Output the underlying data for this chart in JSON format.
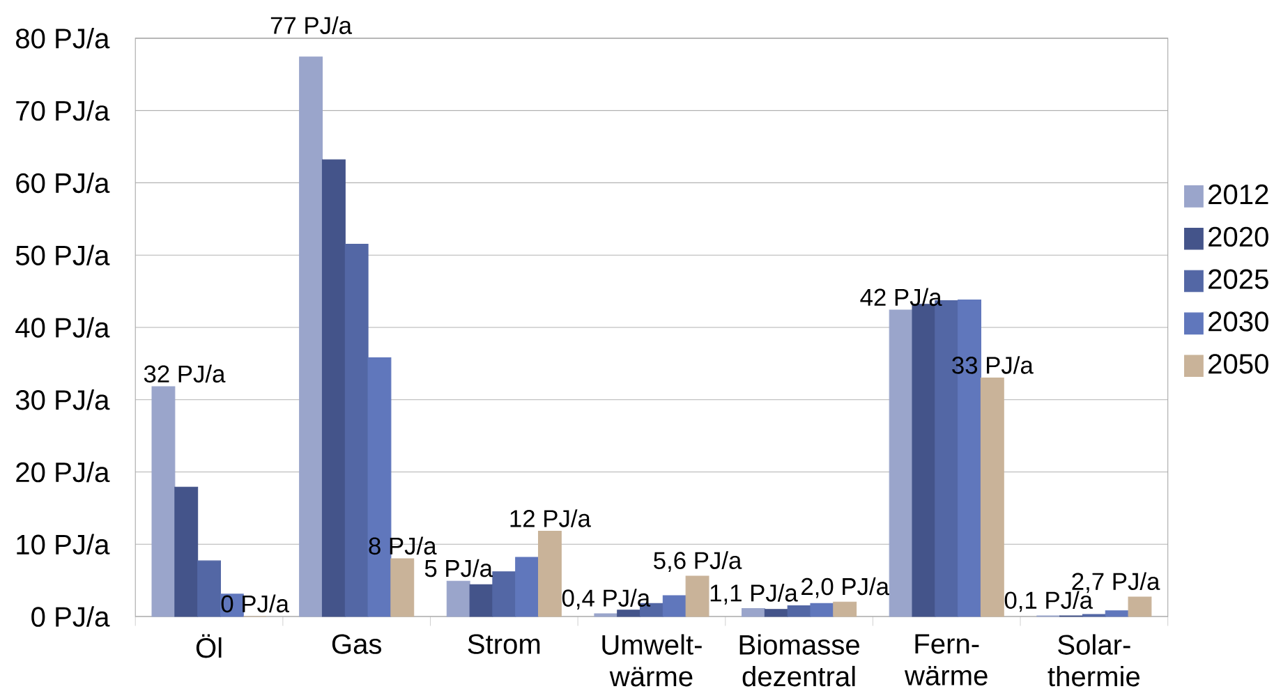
{
  "chart_data": {
    "type": "bar",
    "categories": [
      "Öl",
      "Gas",
      "Strom",
      "Umwelt- wärme",
      "Biomasse dezentral",
      "Fern- wärme",
      "Solar- thermie"
    ],
    "series": [
      {
        "name": "2012",
        "color": "#9aa5cb",
        "values": [
          31.8,
          77.4,
          4.9,
          0.4,
          1.1,
          42.4,
          0.1
        ],
        "value_labels": [
          "32 PJ/a",
          "77 PJ/a",
          "5 PJ/a",
          "0,4 PJ/a",
          "1,1 PJ/a",
          "42 PJ/a",
          "0,1 PJ/a"
        ]
      },
      {
        "name": "2020",
        "color": "#44548a",
        "values": [
          17.9,
          63.2,
          4.4,
          0.9,
          1.0,
          43.2,
          0.1
        ]
      },
      {
        "name": "2025",
        "color": "#5367a5",
        "values": [
          7.7,
          51.5,
          6.2,
          1.8,
          1.5,
          43.7,
          0.3
        ]
      },
      {
        "name": "2030",
        "color": "#6077bc",
        "values": [
          3.1,
          35.8,
          8.2,
          2.9,
          1.8,
          43.8,
          0.8
        ]
      },
      {
        "name": "2050",
        "color": "#c9b399",
        "values": [
          0,
          8.0,
          11.8,
          5.6,
          2.0,
          33,
          2.7
        ],
        "value_labels": [
          "0 PJ/a",
          "8 PJ/a",
          "12 PJ/a",
          "5,6 PJ/a",
          "2,0 PJ/a",
          "33 PJ/a",
          "2,7 PJ/a"
        ]
      }
    ],
    "ylim": [
      0,
      80
    ],
    "yticks": [
      {
        "value": 0,
        "label": "0 PJ/a"
      },
      {
        "value": 10,
        "label": "10 PJ/a"
      },
      {
        "value": 20,
        "label": "20 PJ/a"
      },
      {
        "value": 30,
        "label": "30 PJ/a"
      },
      {
        "value": 40,
        "label": "40 PJ/a"
      },
      {
        "value": 50,
        "label": "50 PJ/a"
      },
      {
        "value": 60,
        "label": "60 PJ/a"
      },
      {
        "value": 70,
        "label": "70 PJ/a"
      },
      {
        "value": 80,
        "label": "80 PJ/a"
      }
    ],
    "grid": "y",
    "legend": "right"
  }
}
